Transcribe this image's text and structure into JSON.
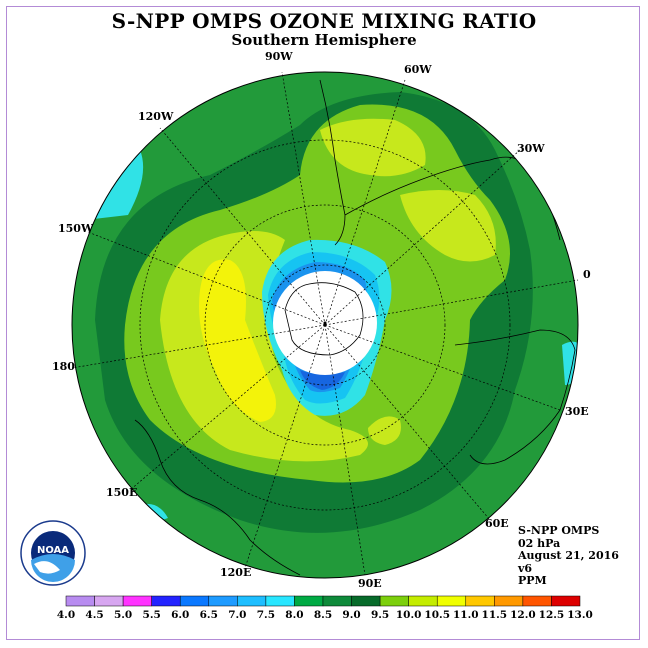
{
  "title": "S-NPP OMPS OZONE MIXING RATIO",
  "subtitle": "Southern Hemisphere",
  "longitude_labels": [
    "90W",
    "60W",
    "30W",
    "0",
    "30E",
    "60E",
    "90E",
    "120E",
    "150E",
    "180",
    "150W",
    "120W"
  ],
  "info": {
    "instrument": "S-NPP OMPS",
    "level": "02 hPa",
    "date": "August 21, 2016",
    "version": "v6",
    "units": "PPM"
  },
  "logo_text": "NOAA",
  "colorbar": {
    "labels": [
      "4.0",
      "4.5",
      "5.0",
      "5.5",
      "6.0",
      "6.5",
      "7.0",
      "7.5",
      "8.0",
      "8.5",
      "9.0",
      "9.5",
      "10.0",
      "10.5",
      "11.0",
      "11.5",
      "12.0",
      "12.5",
      "13.0"
    ],
    "colors": [
      "#b88cf0",
      "#d7a6f0",
      "#ff33ff",
      "#2323ff",
      "#0a78ff",
      "#1e9bff",
      "#1ebeff",
      "#28e6ff",
      "#00aa44",
      "#0e8a3a",
      "#076b2a",
      "#7ccf0c",
      "#c4ec00",
      "#f0ff00",
      "#ffc800",
      "#ff9900",
      "#ff5500",
      "#dd0000",
      "#8c5a3a"
    ]
  },
  "colors": {
    "ozone_8_0_to_8_5": "#229a3a",
    "ozone_8_5_to_9_0": "#0f7a35",
    "ozone_9_0_to_9_5": "#78c91e",
    "ozone_9_5_to_10_0": "#c7e81c",
    "ozone_10_0_to_10_5": "#f3f30a",
    "ozone_7_5_to_8_0": "#30e2e6",
    "ozone_7_0_to_7_5": "#16c4f2",
    "ozone_6_5_to_7_0": "#1a93ee",
    "ozone_6_0_to_6_5": "#1766e0"
  }
}
